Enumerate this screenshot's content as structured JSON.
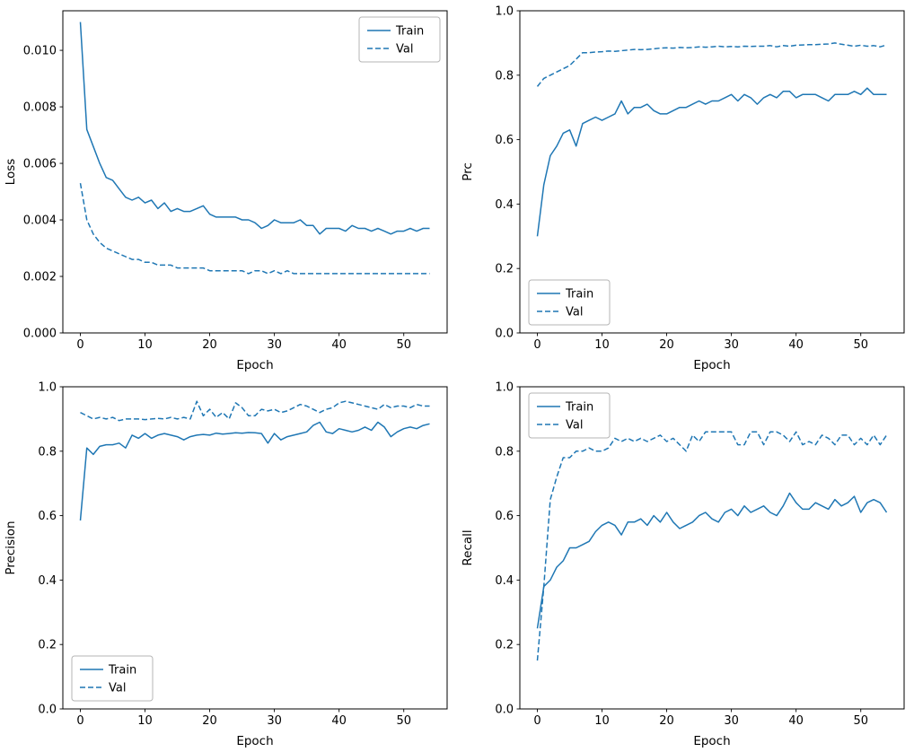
{
  "figure": {
    "background": "#ffffff",
    "line_color": "#1f77b4",
    "axis_color": "#000000",
    "legend_border_color": "#b5b5b5"
  },
  "epochs": [
    0,
    1,
    2,
    3,
    4,
    5,
    6,
    7,
    8,
    9,
    10,
    11,
    12,
    13,
    14,
    15,
    16,
    17,
    18,
    19,
    20,
    21,
    22,
    23,
    24,
    25,
    26,
    27,
    28,
    29,
    30,
    31,
    32,
    33,
    34,
    35,
    36,
    37,
    38,
    39,
    40,
    41,
    42,
    43,
    44,
    45,
    46,
    47,
    48,
    49,
    50,
    51,
    52,
    53,
    54
  ],
  "chart_data": [
    {
      "type": "line",
      "title": "",
      "xlabel": "Epoch",
      "ylabel": "Loss",
      "xlim": [
        -2.7,
        56.7
      ],
      "ylim": [
        0,
        0.0114
      ],
      "xticks": [
        0,
        10,
        20,
        30,
        40,
        50
      ],
      "xtick_labels": [
        "0",
        "10",
        "20",
        "30",
        "40",
        "50"
      ],
      "yticks": [
        0,
        0.002,
        0.004,
        0.006,
        0.008,
        0.01
      ],
      "ytick_labels": [
        "0.000",
        "0.002",
        "0.004",
        "0.006",
        "0.008",
        "0.010"
      ],
      "grid": false,
      "legend_position": "top-right",
      "series": [
        {
          "name": "Train",
          "style": "solid",
          "values": [
            0.011,
            0.0072,
            0.0066,
            0.006,
            0.0055,
            0.0054,
            0.0051,
            0.0048,
            0.0047,
            0.0048,
            0.0046,
            0.0047,
            0.0044,
            0.0046,
            0.0043,
            0.0044,
            0.0043,
            0.0043,
            0.0044,
            0.0045,
            0.0042,
            0.0041,
            0.0041,
            0.0041,
            0.0041,
            0.004,
            0.004,
            0.0039,
            0.0037,
            0.0038,
            0.004,
            0.0039,
            0.0039,
            0.0039,
            0.004,
            0.0038,
            0.0038,
            0.0035,
            0.0037,
            0.0037,
            0.0037,
            0.0036,
            0.0038,
            0.0037,
            0.0037,
            0.0036,
            0.0037,
            0.0036,
            0.0035,
            0.0036,
            0.0036,
            0.0037,
            0.0036,
            0.0037,
            0.0037
          ]
        },
        {
          "name": "Val",
          "style": "dashed",
          "values": [
            0.0053,
            0.004,
            0.0035,
            0.0032,
            0.003,
            0.0029,
            0.0028,
            0.0027,
            0.0026,
            0.0026,
            0.0025,
            0.0025,
            0.0024,
            0.0024,
            0.0024,
            0.0023,
            0.0023,
            0.0023,
            0.0023,
            0.0023,
            0.0022,
            0.0022,
            0.0022,
            0.0022,
            0.0022,
            0.0022,
            0.0021,
            0.0022,
            0.0022,
            0.0021,
            0.0022,
            0.0021,
            0.0022,
            0.0021,
            0.0021,
            0.0021,
            0.0021,
            0.0021,
            0.0021,
            0.0021,
            0.0021,
            0.0021,
            0.0021,
            0.0021,
            0.0021,
            0.0021,
            0.0021,
            0.0021,
            0.0021,
            0.0021,
            0.0021,
            0.0021,
            0.0021,
            0.0021,
            0.0021
          ]
        }
      ]
    },
    {
      "type": "line",
      "title": "",
      "xlabel": "Epoch",
      "ylabel": "Prc",
      "xlim": [
        -2.7,
        56.7
      ],
      "ylim": [
        0,
        1.0
      ],
      "xticks": [
        0,
        10,
        20,
        30,
        40,
        50
      ],
      "xtick_labels": [
        "0",
        "10",
        "20",
        "30",
        "40",
        "50"
      ],
      "yticks": [
        0,
        0.2,
        0.4,
        0.6,
        0.8,
        1.0
      ],
      "ytick_labels": [
        "0.0",
        "0.2",
        "0.4",
        "0.6",
        "0.8",
        "1.0"
      ],
      "grid": false,
      "legend_position": "bottom-left",
      "series": [
        {
          "name": "Train",
          "style": "solid",
          "values": [
            0.3,
            0.46,
            0.55,
            0.58,
            0.62,
            0.63,
            0.58,
            0.65,
            0.66,
            0.67,
            0.66,
            0.67,
            0.68,
            0.72,
            0.68,
            0.7,
            0.7,
            0.71,
            0.69,
            0.68,
            0.68,
            0.69,
            0.7,
            0.7,
            0.71,
            0.72,
            0.71,
            0.72,
            0.72,
            0.73,
            0.74,
            0.72,
            0.74,
            0.73,
            0.71,
            0.73,
            0.74,
            0.73,
            0.75,
            0.75,
            0.73,
            0.74,
            0.74,
            0.74,
            0.73,
            0.72,
            0.74,
            0.74,
            0.74,
            0.75,
            0.74,
            0.76,
            0.74,
            0.74,
            0.74
          ]
        },
        {
          "name": "Val",
          "style": "dashed",
          "values": [
            0.765,
            0.79,
            0.8,
            0.81,
            0.82,
            0.83,
            0.85,
            0.87,
            0.87,
            0.872,
            0.873,
            0.875,
            0.874,
            0.876,
            0.878,
            0.88,
            0.879,
            0.88,
            0.882,
            0.884,
            0.885,
            0.884,
            0.886,
            0.885,
            0.886,
            0.888,
            0.887,
            0.888,
            0.89,
            0.888,
            0.889,
            0.888,
            0.89,
            0.889,
            0.89,
            0.89,
            0.892,
            0.888,
            0.892,
            0.89,
            0.893,
            0.894,
            0.895,
            0.895,
            0.896,
            0.897,
            0.9,
            0.896,
            0.893,
            0.89,
            0.893,
            0.89,
            0.892,
            0.888,
            0.894
          ]
        }
      ]
    },
    {
      "type": "line",
      "title": "",
      "xlabel": "Epoch",
      "ylabel": "Precision",
      "xlim": [
        -2.7,
        56.7
      ],
      "ylim": [
        0,
        1.0
      ],
      "xticks": [
        0,
        10,
        20,
        30,
        40,
        50
      ],
      "xtick_labels": [
        "0",
        "10",
        "20",
        "30",
        "40",
        "50"
      ],
      "yticks": [
        0,
        0.2,
        0.4,
        0.6,
        0.8,
        1.0
      ],
      "ytick_labels": [
        "0.0",
        "0.2",
        "0.4",
        "0.6",
        "0.8",
        "1.0"
      ],
      "grid": false,
      "legend_position": "bottom-left",
      "series": [
        {
          "name": "Train",
          "style": "solid",
          "values": [
            0.585,
            0.81,
            0.79,
            0.815,
            0.82,
            0.82,
            0.825,
            0.81,
            0.85,
            0.84,
            0.855,
            0.84,
            0.85,
            0.855,
            0.85,
            0.845,
            0.835,
            0.845,
            0.85,
            0.852,
            0.85,
            0.856,
            0.853,
            0.855,
            0.857,
            0.856,
            0.858,
            0.857,
            0.855,
            0.825,
            0.855,
            0.835,
            0.845,
            0.85,
            0.855,
            0.86,
            0.88,
            0.89,
            0.86,
            0.855,
            0.87,
            0.865,
            0.86,
            0.865,
            0.875,
            0.865,
            0.89,
            0.875,
            0.845,
            0.86,
            0.87,
            0.875,
            0.87,
            0.88,
            0.885
          ]
        },
        {
          "name": "Val",
          "style": "dashed",
          "values": [
            0.92,
            0.91,
            0.9,
            0.905,
            0.9,
            0.905,
            0.895,
            0.9,
            0.9,
            0.9,
            0.898,
            0.9,
            0.902,
            0.9,
            0.905,
            0.9,
            0.905,
            0.9,
            0.955,
            0.91,
            0.93,
            0.905,
            0.92,
            0.9,
            0.95,
            0.935,
            0.91,
            0.91,
            0.93,
            0.925,
            0.93,
            0.92,
            0.925,
            0.935,
            0.945,
            0.94,
            0.93,
            0.92,
            0.93,
            0.935,
            0.95,
            0.955,
            0.95,
            0.945,
            0.94,
            0.935,
            0.93,
            0.945,
            0.935,
            0.94,
            0.94,
            0.935,
            0.945,
            0.94,
            0.94
          ]
        }
      ]
    },
    {
      "type": "line",
      "title": "",
      "xlabel": "Epoch",
      "ylabel": "Recall",
      "xlim": [
        -2.7,
        56.7
      ],
      "ylim": [
        0,
        1.0
      ],
      "xticks": [
        0,
        10,
        20,
        30,
        40,
        50
      ],
      "xtick_labels": [
        "0",
        "10",
        "20",
        "30",
        "40",
        "50"
      ],
      "yticks": [
        0,
        0.2,
        0.4,
        0.6,
        0.8,
        1.0
      ],
      "ytick_labels": [
        "0.0",
        "0.2",
        "0.4",
        "0.6",
        "0.8",
        "1.0"
      ],
      "grid": false,
      "legend_position": "top-left",
      "series": [
        {
          "name": "Train",
          "style": "solid",
          "values": [
            0.25,
            0.38,
            0.4,
            0.44,
            0.46,
            0.5,
            0.5,
            0.51,
            0.52,
            0.55,
            0.57,
            0.58,
            0.57,
            0.54,
            0.58,
            0.58,
            0.59,
            0.57,
            0.6,
            0.58,
            0.61,
            0.58,
            0.56,
            0.57,
            0.58,
            0.6,
            0.61,
            0.59,
            0.58,
            0.61,
            0.62,
            0.6,
            0.63,
            0.61,
            0.62,
            0.63,
            0.61,
            0.6,
            0.63,
            0.67,
            0.64,
            0.62,
            0.62,
            0.64,
            0.63,
            0.62,
            0.65,
            0.63,
            0.64,
            0.66,
            0.61,
            0.64,
            0.65,
            0.64,
            0.61
          ]
        },
        {
          "name": "Val",
          "style": "dashed",
          "values": [
            0.15,
            0.38,
            0.65,
            0.72,
            0.78,
            0.78,
            0.8,
            0.8,
            0.81,
            0.8,
            0.8,
            0.81,
            0.84,
            0.83,
            0.84,
            0.83,
            0.84,
            0.83,
            0.84,
            0.85,
            0.83,
            0.84,
            0.82,
            0.8,
            0.85,
            0.83,
            0.86,
            0.86,
            0.86,
            0.86,
            0.86,
            0.82,
            0.82,
            0.86,
            0.86,
            0.82,
            0.86,
            0.86,
            0.85,
            0.83,
            0.86,
            0.82,
            0.83,
            0.82,
            0.85,
            0.84,
            0.82,
            0.85,
            0.85,
            0.82,
            0.84,
            0.82,
            0.85,
            0.82,
            0.85
          ]
        }
      ]
    }
  ]
}
